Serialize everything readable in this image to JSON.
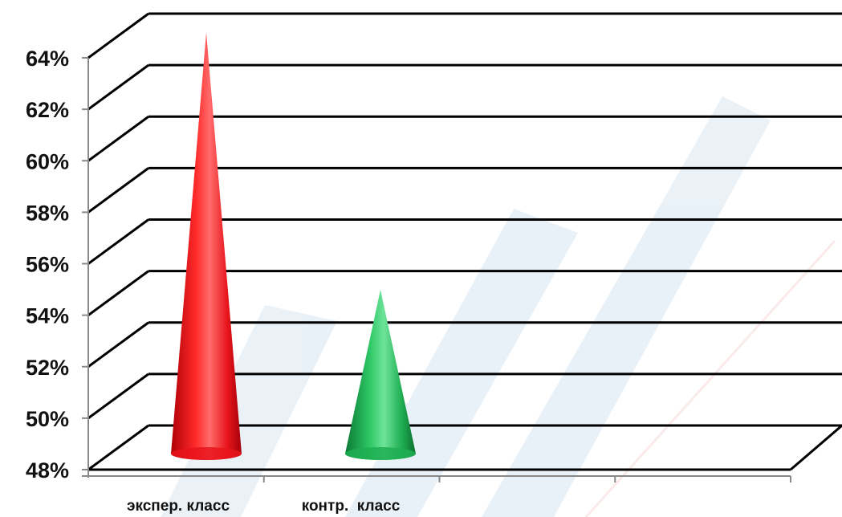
{
  "chart_data": {
    "type": "bar",
    "shape": "cone-3d",
    "categories": [
      "экспер. класс",
      "контр.  класс"
    ],
    "values": [
      64.3,
      54.3
    ],
    "ylim": [
      48,
      64
    ],
    "y_tick_labels": [
      "48%",
      "50%",
      "52%",
      "54%",
      "56%",
      "58%",
      "60%",
      "62%",
      "64%"
    ],
    "grid": true,
    "colors": [
      "#e8141b",
      "#1fae52"
    ],
    "title": "",
    "xlabel": "",
    "ylabel": ""
  }
}
